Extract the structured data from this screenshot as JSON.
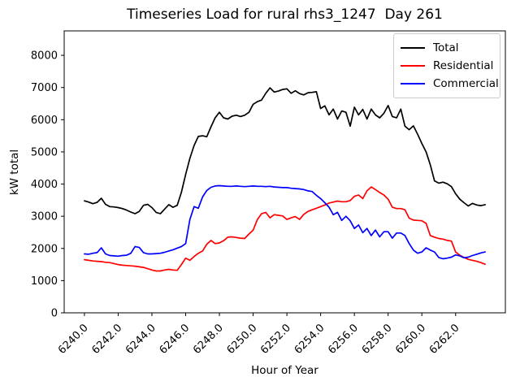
{
  "title": "Timeseries Load for rural rhs3_1247  Day 261",
  "chart_data": {
    "type": "line",
    "title": "Timeseries Load for rural rhs3_1247  Day 261",
    "xlabel": "Hour of Year",
    "ylabel": "kW total",
    "xlim": [
      6238.8,
      6264.95
    ],
    "ylim": [
      0,
      8760
    ],
    "x_tick_labels": [
      "6240.0",
      "6242.0",
      "6244.0",
      "6246.0",
      "6248.0",
      "6250.0",
      "6252.0",
      "6254.0",
      "6256.0",
      "6258.0",
      "6260.0",
      "6262.0"
    ],
    "y_tick_labels": [
      "0",
      "1000",
      "2000",
      "3000",
      "4000",
      "5000",
      "6000",
      "7000",
      "8000"
    ],
    "grid": false,
    "legend_position": "upper right",
    "x_start": 6240.0,
    "x_step": 0.25,
    "series": [
      {
        "name": "Total",
        "color": "#000000",
        "values": [
          3480,
          3440,
          3390,
          3430,
          3560,
          3370,
          3300,
          3290,
          3270,
          3240,
          3190,
          3130,
          3080,
          3150,
          3340,
          3370,
          3270,
          3120,
          3080,
          3220,
          3360,
          3280,
          3340,
          3750,
          4300,
          4800,
          5200,
          5480,
          5500,
          5470,
          5780,
          6060,
          6230,
          6060,
          6020,
          6110,
          6140,
          6100,
          6140,
          6230,
          6480,
          6560,
          6610,
          6820,
          6990,
          6860,
          6890,
          6940,
          6960,
          6820,
          6900,
          6810,
          6770,
          6840,
          6850,
          6870,
          6350,
          6430,
          6150,
          6330,
          6020,
          6270,
          6230,
          5800,
          6390,
          6150,
          6320,
          6020,
          6330,
          6150,
          6060,
          6200,
          6440,
          6100,
          6060,
          6330,
          5800,
          5690,
          5810,
          5550,
          5260,
          5000,
          4600,
          4100,
          4030,
          4060,
          4010,
          3920,
          3700,
          3530,
          3420,
          3320,
          3400,
          3350,
          3330,
          3360
        ]
      },
      {
        "name": "Residential",
        "color": "#ff0000",
        "values": [
          1650,
          1630,
          1610,
          1600,
          1590,
          1570,
          1560,
          1530,
          1500,
          1480,
          1470,
          1460,
          1450,
          1430,
          1410,
          1370,
          1330,
          1300,
          1300,
          1330,
          1350,
          1330,
          1320,
          1500,
          1700,
          1630,
          1750,
          1850,
          1920,
          2130,
          2250,
          2150,
          2170,
          2240,
          2350,
          2360,
          2340,
          2320,
          2310,
          2450,
          2570,
          2900,
          3080,
          3120,
          2950,
          3050,
          3030,
          3010,
          2900,
          2950,
          2990,
          2900,
          3060,
          3150,
          3200,
          3250,
          3300,
          3350,
          3410,
          3440,
          3470,
          3450,
          3450,
          3490,
          3620,
          3660,
          3550,
          3790,
          3910,
          3830,
          3740,
          3660,
          3530,
          3280,
          3240,
          3240,
          3200,
          2940,
          2880,
          2870,
          2860,
          2780,
          2400,
          2350,
          2310,
          2290,
          2250,
          2230,
          1890,
          1790,
          1720,
          1660,
          1630,
          1600,
          1560,
          1510
        ]
      },
      {
        "name": "Commercial",
        "color": "#0000ff",
        "values": [
          1830,
          1820,
          1850,
          1870,
          2020,
          1830,
          1780,
          1770,
          1760,
          1780,
          1790,
          1850,
          2060,
          2030,
          1870,
          1830,
          1830,
          1840,
          1850,
          1880,
          1920,
          1960,
          2010,
          2060,
          2150,
          2900,
          3300,
          3250,
          3600,
          3800,
          3900,
          3940,
          3950,
          3940,
          3930,
          3930,
          3940,
          3930,
          3920,
          3930,
          3940,
          3930,
          3930,
          3920,
          3930,
          3910,
          3900,
          3890,
          3890,
          3870,
          3860,
          3850,
          3830,
          3790,
          3770,
          3650,
          3550,
          3420,
          3280,
          3050,
          3120,
          2870,
          3000,
          2860,
          2620,
          2730,
          2490,
          2620,
          2400,
          2570,
          2360,
          2520,
          2520,
          2320,
          2480,
          2480,
          2400,
          2150,
          1950,
          1850,
          1890,
          2020,
          1950,
          1890,
          1720,
          1680,
          1700,
          1730,
          1800,
          1770,
          1710,
          1730,
          1780,
          1820,
          1860,
          1890
        ]
      }
    ]
  }
}
